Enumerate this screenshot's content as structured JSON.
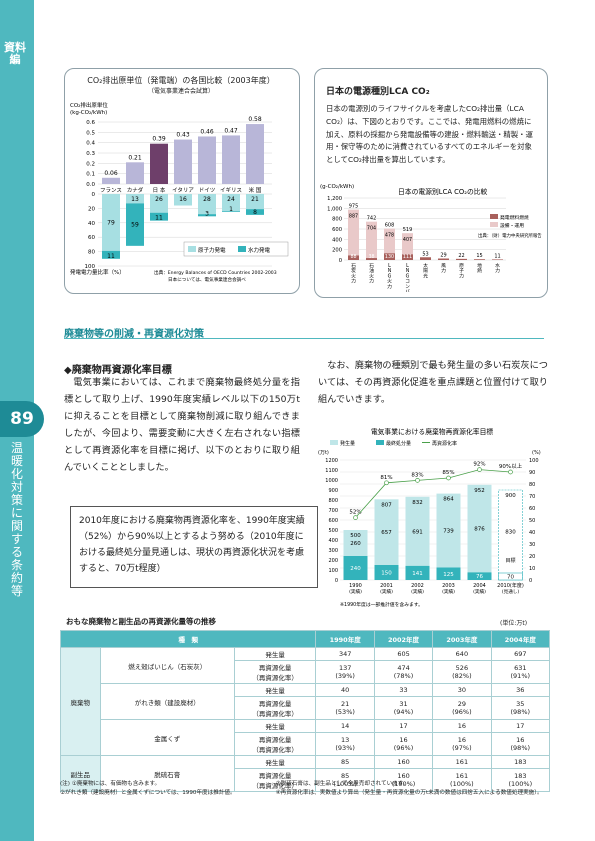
{
  "sidebar": {
    "category": "資料編",
    "page": "89",
    "title": "温暖化対策に関する条約等"
  },
  "c1": {
    "title": "CO₂排出原単位（発電端）の各国比較（2003年度）",
    "subtitle": "（電気事業連合会試算）",
    "ylabel": "CO₂排出原単位",
    "yunit": "(kg-CO₂/kWh)",
    "countries": [
      "フランス",
      "カナダ",
      "日 本",
      "イタリア",
      "ドイツ",
      "イギリス",
      "米 国"
    ],
    "co2": [
      0.06,
      0.21,
      0.39,
      0.43,
      0.46,
      0.47,
      0.58
    ],
    "co2_labels": [
      "0.06",
      "0.21",
      "0.39",
      "0.43",
      "0.46",
      "0.47",
      "0.58"
    ],
    "yticks_top": [
      "0.6",
      "0.5",
      "0.4",
      "0.3",
      "0.2",
      "0.1",
      "0.0"
    ],
    "nuclear": [
      79,
      13,
      26,
      16,
      28,
      24,
      21
    ],
    "hydro": [
      11,
      59,
      11,
      0,
      3,
      1,
      8
    ],
    "yticks_bottom": [
      "0",
      "20",
      "40",
      "60",
      "80",
      "100"
    ],
    "blabel": "発電電力量比率（%）",
    "legend": [
      "原子力発電",
      "水力発電"
    ],
    "source1": "出典：Energy Balances of OECD Countries 2002-2003",
    "source2": "日本については、電気事業連合会調べ"
  },
  "c2": {
    "box_title": "日本の電源種別LCA CO₂",
    "text": "日本の電源別のライフサイクルを考慮したCO₂排出量（LCA CO₂）は、下図のとおりです。ここでは、発電用燃料の燃焼に加え、原料の採掘から発電設備等の建設・燃料輸送・精製・運用・保守等のために消費されているすべてのエネルギーを対象としてCO₂排出量を算出しています。",
    "chart_title": "日本の電源別LCA CO₂の比較",
    "yunit": "(g-CO₂/kWh)",
    "yticks": [
      "1,200",
      "1,000",
      "800",
      "600",
      "400",
      "200",
      "0"
    ],
    "sources": [
      "石炭火力",
      "石油火力",
      "LNG火力",
      "LNGコンバイン",
      "太陽光",
      "風力",
      "原子力",
      "地熱",
      "水力"
    ],
    "totals": [
      975,
      742,
      608,
      519,
      53,
      29,
      22,
      15,
      11
    ],
    "fuel": [
      887,
      704,
      478,
      407,
      0,
      0,
      0,
      0,
      0
    ],
    "facility": [
      88,
      38,
      130,
      111,
      0,
      0,
      0,
      0,
      0
    ],
    "total_labels": [
      "975",
      "742",
      "608",
      "519",
      "53",
      "29",
      "22",
      "15",
      "11"
    ],
    "fuel_labels": [
      "887",
      "704",
      "478",
      "407"
    ],
    "facility_labels": [
      "88",
      "38",
      "130",
      "111"
    ],
    "legend": [
      "発電燃料燃焼",
      "設備・運用"
    ],
    "source": "出典：（財）電力中央研究所報告"
  },
  "section": {
    "heading": "廃棄物等の削減・再資源化対策",
    "sub": "◆廃棄物再資源化率目標",
    "para1": "電気事業においては、これまで廃棄物最終処分量を指標として取り上げ、1990年度実績レベル以下の150万tに抑えることを目標として廃棄物削減に取り組んできましたが、今回より、需要変動に大きく左右されない指標として再資源化率を目標に掲げ、以下のとおりに取り組んでいくこととしました。",
    "box": "2010年度における廃棄物再資源化率を、1990年度実績（52%）から90%以上とするよう努める（2010年度における最終処分量見通しは、現状の再資源化状況を考慮すると、70万t程度）",
    "para2": "なお、廃棄物の種類別で最も発生量の多い石炭灰については、その再資源化促進を重点課題と位置付けて取り組んでいきます。"
  },
  "c3": {
    "title": "電気事業における廃棄物再資源化率目標",
    "legend": [
      "発生量",
      "最終処分量",
      "再資源化率"
    ],
    "yunit_left": "(万t)",
    "yunit_right": "(%)",
    "yticks_left": [
      "1200",
      "1100",
      "1000",
      "900",
      "800",
      "700",
      "600",
      "500",
      "400",
      "300",
      "200",
      "100",
      "0"
    ],
    "yticks_right": [
      "100",
      "90",
      "80",
      "70",
      "60",
      "50",
      "40",
      "30",
      "20",
      "10",
      "0"
    ],
    "years": [
      "1990",
      "2001",
      "2002",
      "2003",
      "2004",
      "2010(年度)"
    ],
    "years_sub": [
      "(実績)",
      "(実績)",
      "(実績)",
      "(実績)",
      "(実績)",
      "(見通し)"
    ],
    "generation": [
      500,
      807,
      832,
      864,
      952,
      900
    ],
    "disposal": [
      240,
      150,
      141,
      125,
      76,
      70
    ],
    "reuse": [
      260,
      657,
      691,
      739,
      876,
      830
    ],
    "rate": [
      52,
      81,
      83,
      85,
      92,
      90
    ],
    "gen_labels": [
      "500",
      "807",
      "832",
      "864",
      "952",
      "900"
    ],
    "disp_labels": [
      "240",
      "150",
      "141",
      "125",
      "76",
      "70"
    ],
    "reuse_labels": [
      "260",
      "657",
      "691",
      "739",
      "876",
      "830"
    ],
    "rate_labels": [
      "52%",
      "81%",
      "83%",
      "85%",
      "92%",
      "90%以上"
    ],
    "mokuhyo": "目標",
    "note": "※1990年度は一部推計値を含みます。"
  },
  "table": {
    "title": "おもな廃棄物と副生品の再資源化量等の推移",
    "unit": "(単位:万t)",
    "headers": [
      "種　類",
      "",
      "1990年度",
      "2002年度",
      "2003年度",
      "2004年度"
    ],
    "groups": [
      {
        "cat": "廃棄物",
        "items": [
          {
            "name": "燃え殻ばいじん（石炭灰）",
            "gen": [
              "347",
              "605",
              "640",
              "697"
            ],
            "rec": [
              "137",
              "474",
              "526",
              "631"
            ],
            "rate": [
              "(39%)",
              "(78%)",
              "(82%)",
              "(91%)"
            ]
          },
          {
            "name": "がれき類（建設廃材）",
            "gen": [
              "40",
              "33",
              "30",
              "36"
            ],
            "rec": [
              "21",
              "31",
              "29",
              "35"
            ],
            "rate": [
              "(53%)",
              "(94%)",
              "(96%)",
              "(98%)"
            ]
          },
          {
            "name": "金属くず",
            "gen": [
              "14",
              "17",
              "16",
              "17"
            ],
            "rec": [
              "13",
              "16",
              "16",
              "16"
            ],
            "rate": [
              "(93%)",
              "(96%)",
              "(97%)",
              "(98%)"
            ]
          }
        ]
      },
      {
        "cat": "副生品",
        "items": [
          {
            "name": "脱硫石膏",
            "gen": [
              "85",
              "160",
              "161",
              "183"
            ],
            "rec": [
              "85",
              "160",
              "161",
              "183"
            ],
            "rate": [
              "(100%)",
              "(100%)",
              "(100%)",
              "(100%)"
            ]
          }
        ]
      }
    ],
    "row_gen": "発生量",
    "row_rec": "再資源化量",
    "row_rate": "（再資源化率）",
    "notes": [
      "(注) ①廃棄物には、有価物も含みます。",
      "②がれき類（建設廃材）と金属くずについては、1990年度は推計値。",
      "③脱硫石膏は、副生品として全量売却されています。",
      "④再資源化率は、実数値より算出（発生量・再資源化量の万t未満の数値は四捨五入による数値処理実施）。"
    ]
  }
}
